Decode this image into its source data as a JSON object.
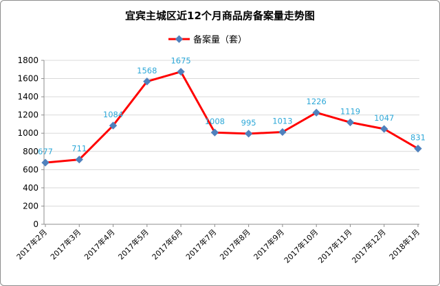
{
  "chart_data": {
    "type": "line",
    "title": "宜宾主城区近12个月商品房备案量走势图",
    "categories": [
      "2017年2月",
      "2017年3月",
      "2017年4月",
      "2017年5月",
      "2017年6月",
      "2017年7月",
      "2017年8月",
      "2017年9月",
      "2017年10月",
      "2017年11月",
      "2017年12月",
      "2018年1月"
    ],
    "series": [
      {
        "name": "备案量（套）",
        "values": [
          677,
          711,
          1084,
          1568,
          1675,
          1008,
          995,
          1013,
          1226,
          1119,
          1047,
          831
        ]
      }
    ],
    "yticks": [
      "0",
      "200",
      "400",
      "600",
      "800",
      "1000",
      "1200",
      "1400",
      "1600",
      "1800"
    ],
    "ylim": [
      0,
      1800
    ],
    "grid": true,
    "legend_position": "top-left",
    "colors": {
      "line": "#ff0000",
      "marker": "#4f81bd",
      "data_label": "#2ea8d8",
      "grid": "#d9d9d9"
    }
  }
}
